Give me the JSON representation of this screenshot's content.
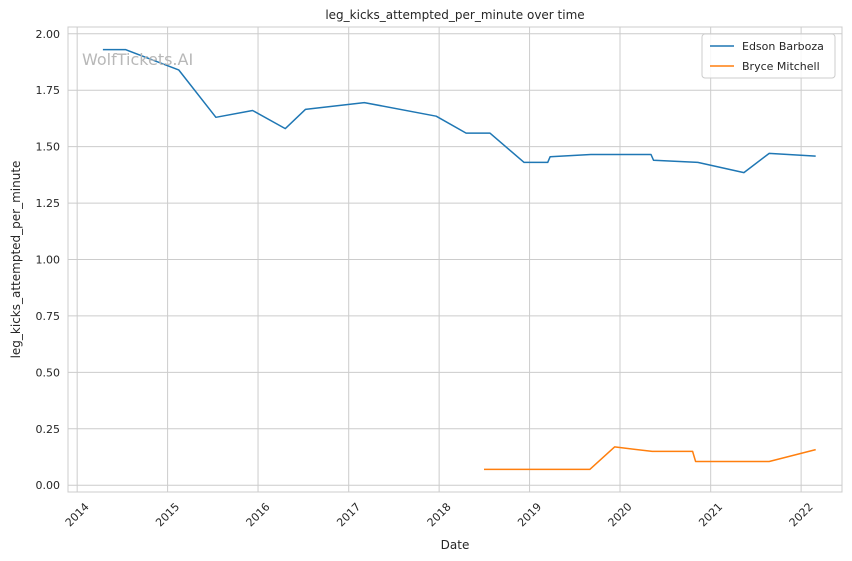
{
  "chart_data": {
    "type": "line",
    "title": "leg_kicks_attempted_per_minute over time",
    "xlabel": "Date",
    "ylabel": "leg_kicks_attempted_per_minute",
    "watermark": "WolfTickets.AI",
    "x_ticks": [
      "2014",
      "2015",
      "2016",
      "2017",
      "2018",
      "2019",
      "2020",
      "2021",
      "2022"
    ],
    "y_ticks": [
      "0.00",
      "0.25",
      "0.50",
      "0.75",
      "1.00",
      "1.25",
      "1.50",
      "1.75",
      "2.00"
    ],
    "xlim": [
      "2013-11-25",
      "2022-06-15"
    ],
    "ylim": [
      -0.03,
      2.03
    ],
    "grid": true,
    "legend_position": "top-right",
    "series": [
      {
        "name": "Edson Barboza",
        "color": "#1f77b4",
        "points": [
          [
            "2014-04-15",
            1.93
          ],
          [
            "2014-07-15",
            1.93
          ],
          [
            "2015-02-15",
            1.84
          ],
          [
            "2015-07-15",
            1.63
          ],
          [
            "2015-12-10",
            1.66
          ],
          [
            "2016-04-20",
            1.58
          ],
          [
            "2016-07-10",
            1.665
          ],
          [
            "2017-03-05",
            1.695
          ],
          [
            "2017-12-20",
            1.635
          ],
          [
            "2018-04-20",
            1.56
          ],
          [
            "2018-07-25",
            1.56
          ],
          [
            "2018-12-10",
            1.43
          ],
          [
            "2019-03-15",
            1.43
          ],
          [
            "2019-03-25",
            1.455
          ],
          [
            "2019-09-05",
            1.465
          ],
          [
            "2020-05-05",
            1.465
          ],
          [
            "2020-05-15",
            1.44
          ],
          [
            "2020-11-10",
            1.43
          ],
          [
            "2021-05-15",
            1.385
          ],
          [
            "2021-08-25",
            1.47
          ],
          [
            "2022-03-01",
            1.458
          ]
        ]
      },
      {
        "name": "Bryce Mitchell",
        "color": "#ff7f0e",
        "points": [
          [
            "2018-07-01",
            0.07
          ],
          [
            "2019-09-01",
            0.07
          ],
          [
            "2019-12-10",
            0.17
          ],
          [
            "2020-05-10",
            0.15
          ],
          [
            "2020-10-20",
            0.15
          ],
          [
            "2020-11-01",
            0.105
          ],
          [
            "2021-08-25",
            0.105
          ],
          [
            "2022-03-01",
            0.158
          ]
        ]
      }
    ]
  }
}
